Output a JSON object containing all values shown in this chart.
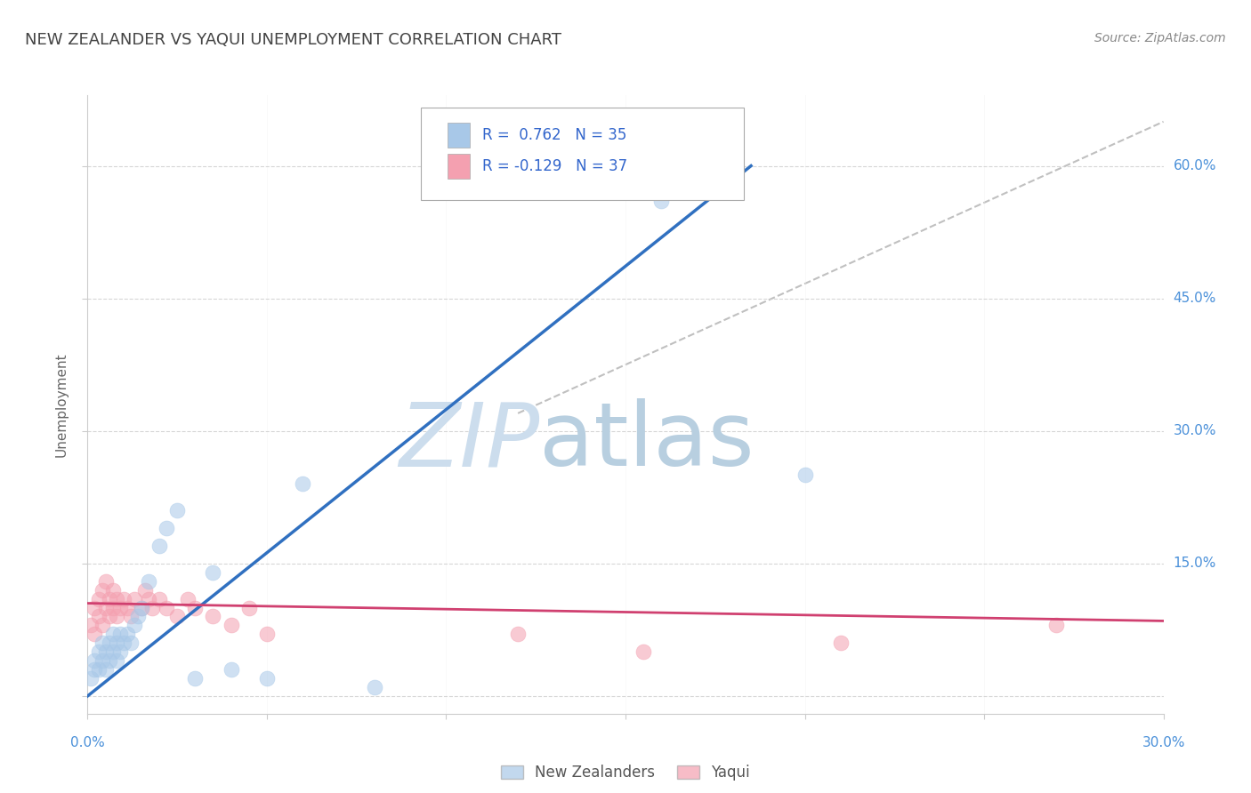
{
  "title": "NEW ZEALANDER VS YAQUI UNEMPLOYMENT CORRELATION CHART",
  "source": "Source: ZipAtlas.com",
  "ylabel_label": "Unemployment",
  "xlim": [
    0.0,
    0.3
  ],
  "ylim": [
    -0.02,
    0.68
  ],
  "xticks": [
    0.0,
    0.05,
    0.1,
    0.15,
    0.2,
    0.25,
    0.3
  ],
  "yticks": [
    0.0,
    0.15,
    0.3,
    0.45,
    0.6
  ],
  "blue_color": "#a8c8e8",
  "pink_color": "#f4a0b0",
  "blue_line_color": "#3070c0",
  "pink_line_color": "#d04070",
  "ref_line_color": "#c0c0c0",
  "background_color": "#ffffff",
  "watermark_text": "ZIPatlas",
  "watermark_color": "#d0e4f4",
  "legend_R_blue": "0.762",
  "legend_N_blue": "35",
  "legend_R_pink": "-0.129",
  "legend_N_pink": "37",
  "blue_scatter_x": [
    0.001,
    0.002,
    0.002,
    0.003,
    0.003,
    0.004,
    0.004,
    0.005,
    0.005,
    0.006,
    0.006,
    0.007,
    0.007,
    0.008,
    0.008,
    0.009,
    0.009,
    0.01,
    0.011,
    0.012,
    0.013,
    0.014,
    0.015,
    0.017,
    0.02,
    0.022,
    0.025,
    0.03,
    0.035,
    0.04,
    0.05,
    0.06,
    0.08,
    0.16,
    0.2
  ],
  "blue_scatter_y": [
    0.02,
    0.03,
    0.04,
    0.03,
    0.05,
    0.04,
    0.06,
    0.03,
    0.05,
    0.04,
    0.06,
    0.05,
    0.07,
    0.04,
    0.06,
    0.05,
    0.07,
    0.06,
    0.07,
    0.06,
    0.08,
    0.09,
    0.1,
    0.13,
    0.17,
    0.19,
    0.21,
    0.02,
    0.14,
    0.03,
    0.02,
    0.24,
    0.01,
    0.56,
    0.25
  ],
  "pink_scatter_x": [
    0.001,
    0.002,
    0.002,
    0.003,
    0.003,
    0.004,
    0.004,
    0.005,
    0.005,
    0.006,
    0.006,
    0.007,
    0.007,
    0.008,
    0.008,
    0.009,
    0.01,
    0.011,
    0.012,
    0.013,
    0.015,
    0.016,
    0.017,
    0.018,
    0.02,
    0.022,
    0.025,
    0.028,
    0.03,
    0.035,
    0.04,
    0.045,
    0.05,
    0.12,
    0.155,
    0.21,
    0.27
  ],
  "pink_scatter_y": [
    0.08,
    0.07,
    0.1,
    0.09,
    0.11,
    0.08,
    0.12,
    0.1,
    0.13,
    0.09,
    0.11,
    0.1,
    0.12,
    0.11,
    0.09,
    0.1,
    0.11,
    0.1,
    0.09,
    0.11,
    0.1,
    0.12,
    0.11,
    0.1,
    0.11,
    0.1,
    0.09,
    0.11,
    0.1,
    0.09,
    0.08,
    0.1,
    0.07,
    0.07,
    0.05,
    0.06,
    0.08
  ],
  "blue_line_x": [
    0.0,
    0.185
  ],
  "blue_line_y": [
    0.0,
    0.6
  ],
  "pink_line_x": [
    0.0,
    0.3
  ],
  "pink_line_y": [
    0.105,
    0.085
  ],
  "ref_line_x": [
    0.12,
    0.3
  ],
  "ref_line_y": [
    0.32,
    0.65
  ]
}
